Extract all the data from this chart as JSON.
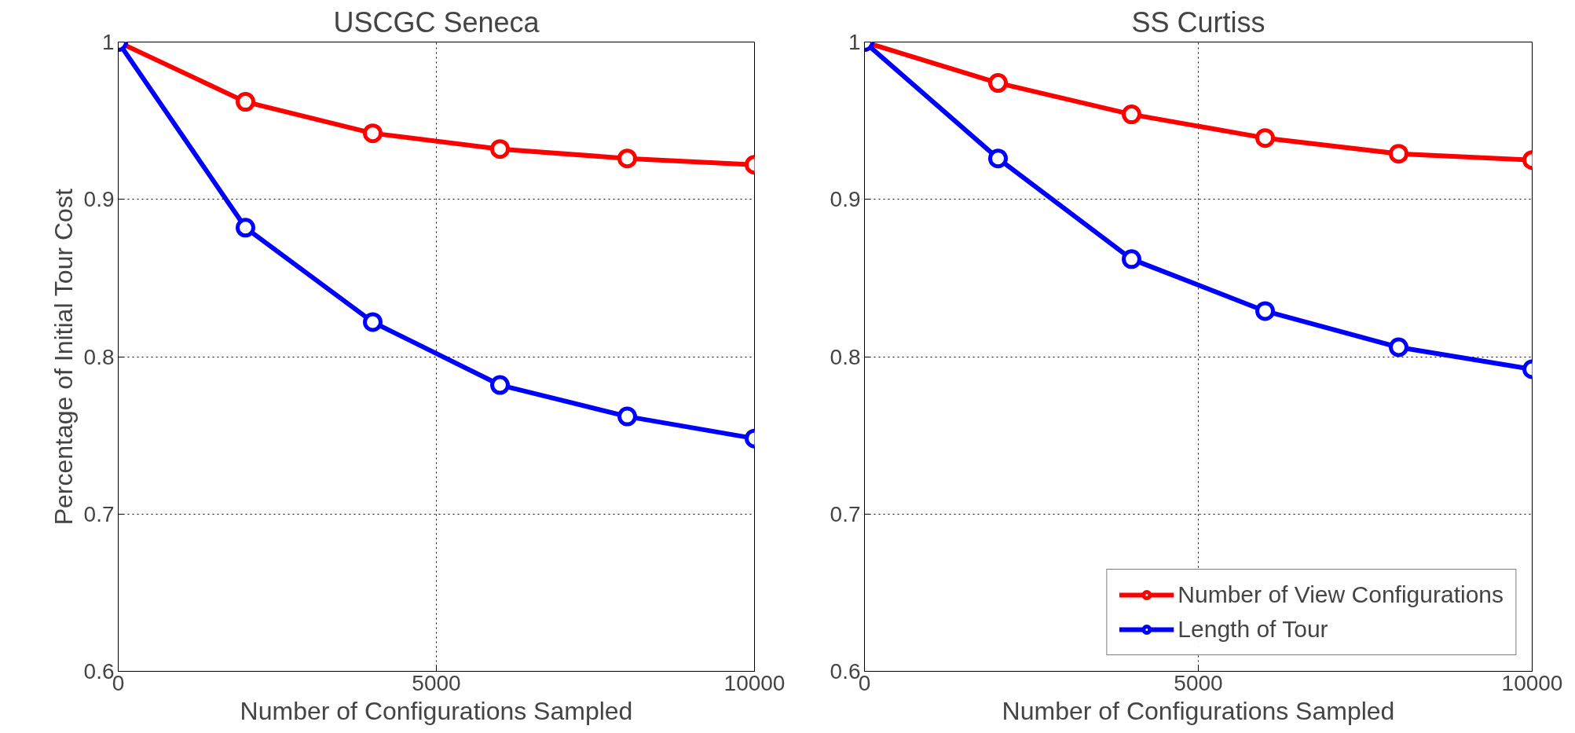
{
  "chart_data": [
    {
      "type": "line",
      "title": "USCGC Seneca",
      "xlabel": "Number of Configurations Sampled",
      "ylabel": "Percentage of Initial Tour Cost",
      "x": [
        0,
        2000,
        4000,
        6000,
        8000,
        10000
      ],
      "xlim": [
        0,
        10000
      ],
      "ylim": [
        0.6,
        1
      ],
      "xticks": [
        0,
        5000,
        10000
      ],
      "yticks": [
        0.6,
        0.7,
        0.8,
        0.9,
        1
      ],
      "grid": true,
      "marker": "circle",
      "line_style": "solid",
      "legend": false,
      "series": [
        {
          "color": "#ff0000",
          "values": [
            1,
            0.962,
            0.942,
            0.932,
            0.926,
            0.922
          ]
        },
        {
          "color": "#0000ff",
          "values": [
            1,
            0.882,
            0.822,
            0.782,
            0.762,
            0.748
          ]
        }
      ]
    },
    {
      "type": "line",
      "title": "SS Curtiss",
      "xlabel": "Number of Configurations Sampled",
      "x": [
        0,
        2000,
        4000,
        6000,
        8000,
        10000
      ],
      "xlim": [
        0,
        10000
      ],
      "ylim": [
        0.6,
        1
      ],
      "xticks": [
        0,
        5000,
        10000
      ],
      "yticks": [
        0.6,
        0.7,
        0.8,
        0.9,
        1
      ],
      "grid": true,
      "marker": "circle",
      "line_style": "solid",
      "legend": "bottom right",
      "series": [
        {
          "name": "Number of View Configurations",
          "color": "#ff0000",
          "values": [
            1,
            0.974,
            0.954,
            0.939,
            0.929,
            0.925
          ]
        },
        {
          "name": "Length of Tour",
          "color": "#0000ff",
          "values": [
            1,
            0.926,
            0.862,
            0.829,
            0.806,
            0.792
          ]
        }
      ]
    }
  ]
}
